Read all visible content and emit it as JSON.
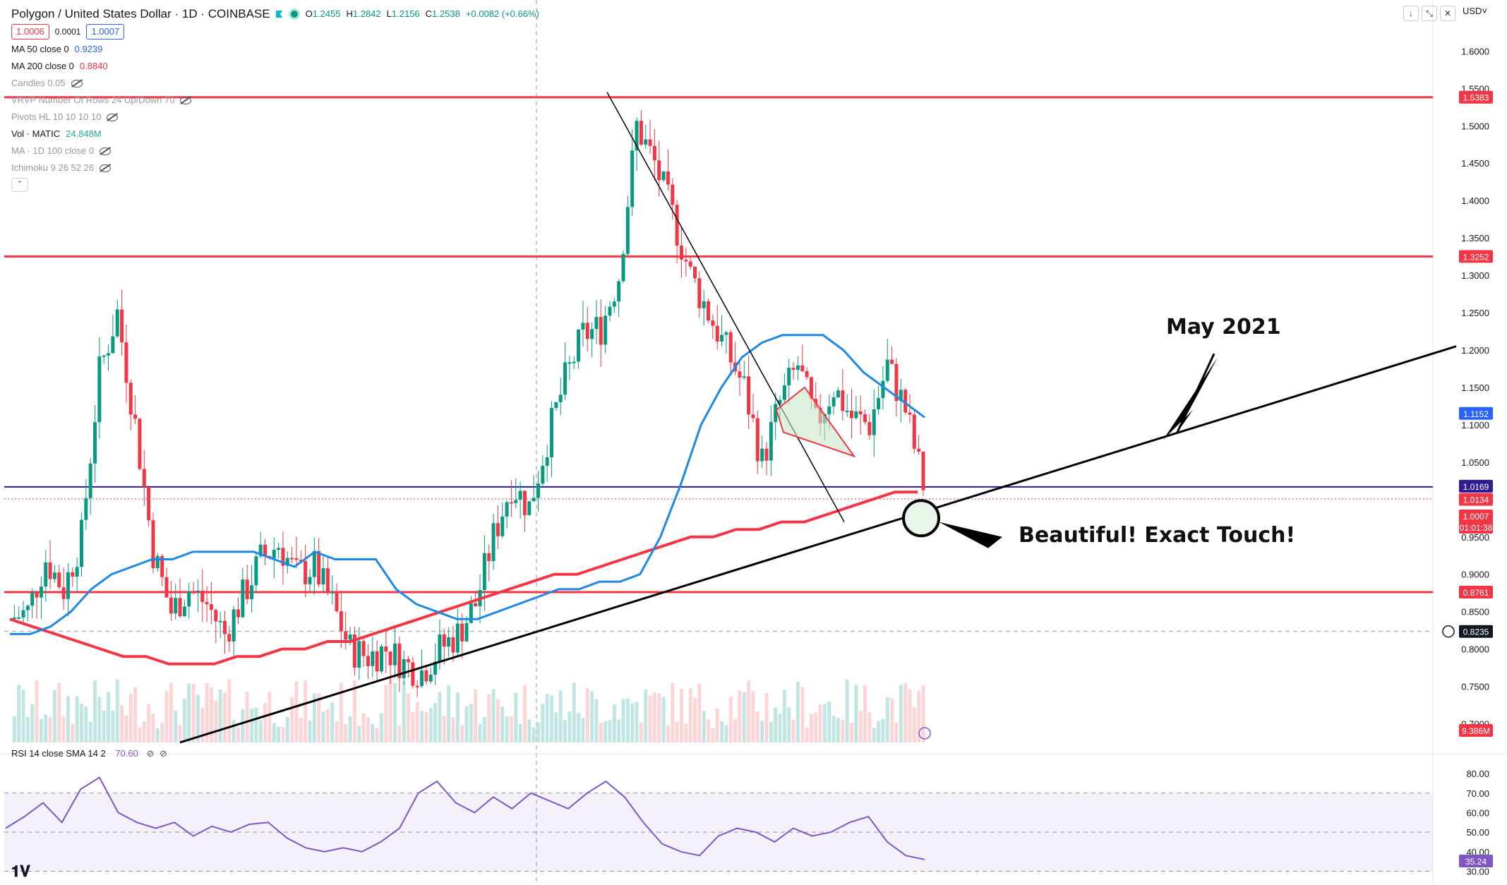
{
  "header": {
    "symbol": "Polygon / United States Dollar · 1D · COINBASE",
    "ohlc": {
      "o_label": "O",
      "o": "1.2455",
      "h_label": "H",
      "h": "1.2842",
      "l_label": "L",
      "l": "1.2156",
      "c_label": "C",
      "c": "1.2538",
      "change": "+0.0082 (+0.66%)"
    },
    "bid": "1.0006",
    "spread": "0.0001",
    "ask": "1.0007",
    "currency": "USD"
  },
  "indicators": [
    {
      "name": "MA 50 close 0",
      "value": "0.9239",
      "color": "#2962ff"
    },
    {
      "name": "MA 200 close 0",
      "value": "0.8840",
      "color": "#f23645"
    },
    {
      "name": "Candles 0.05",
      "value": "",
      "hidden": true
    },
    {
      "name": "VRVP Number Of Rows 24 Up/Down 70",
      "value": "",
      "hidden": true
    },
    {
      "name": "Pivots HL 10 10 10 10",
      "value": "",
      "hidden": true
    },
    {
      "name": "Vol · MATIC",
      "value": "24.848M",
      "color": "#22ab94"
    },
    {
      "name": "MA · 1D 100 close 0",
      "value": "",
      "hidden": true
    },
    {
      "name": "Ichimoku 9 26 52 26",
      "value": "",
      "hidden": true
    }
  ],
  "rsi": {
    "label": "RSI 14 close SMA 14 2",
    "value": "70.60"
  },
  "annotations": {
    "may": "May 2021",
    "touch": "Beautiful! Exact Touch!"
  },
  "price_labels": [
    {
      "value": "1.5383",
      "color": "#f23645"
    },
    {
      "value": "1.3252",
      "color": "#f23645"
    },
    {
      "value": "1.1152",
      "color": "#2962ff"
    },
    {
      "value": "1.0169",
      "color": "#311b92"
    },
    {
      "value": "1.0134",
      "color": "#f23645"
    },
    {
      "value": "1.0007",
      "color": "#f23645"
    },
    {
      "value": "01:01:38",
      "color": "#f23645"
    },
    {
      "value": "0.8761",
      "color": "#f23645"
    },
    {
      "value": "0.8235",
      "color": "#131722"
    },
    {
      "value": "9.386M",
      "color": "#f23645"
    },
    {
      "value": "35.24",
      "color": "#7e57c2"
    }
  ],
  "chart_data": {
    "type": "line",
    "title": "",
    "y_ticks": [
      "1.6000",
      "1.5500",
      "1.5000",
      "1.4500",
      "1.4000",
      "1.3500",
      "1.3000",
      "1.2500",
      "1.2000",
      "1.1500",
      "1.1000",
      "1.0500",
      "0.9500",
      "0.9000",
      "0.8500",
      "0.8000",
      "0.7500",
      "0.7000"
    ],
    "ylim": [
      0.675,
      1.64
    ],
    "rsi_ticks": [
      "80.00",
      "70.00",
      "60.00",
      "50.00",
      "40.00",
      "30.00"
    ],
    "rsi_ylim": [
      28,
      84
    ],
    "horizontal_lines": [
      {
        "name": "resistance",
        "value": 1.5383,
        "color": "#f23645"
      },
      {
        "name": "resistance",
        "value": 1.3252,
        "color": "#f23645"
      },
      {
        "name": "level",
        "value": 1.0169,
        "color": "#311b92"
      },
      {
        "name": "support",
        "value": 0.8761,
        "color": "#f23645"
      }
    ],
    "series": [
      {
        "name": "MA 50",
        "color": "#1e88e5",
        "values": [
          0.82,
          0.82,
          0.83,
          0.85,
          0.88,
          0.9,
          0.91,
          0.92,
          0.92,
          0.93,
          0.93,
          0.93,
          0.93,
          0.92,
          0.91,
          0.93,
          0.92,
          0.92,
          0.92,
          0.88,
          0.86,
          0.85,
          0.84,
          0.84,
          0.85,
          0.86,
          0.87,
          0.88,
          0.88,
          0.89,
          0.89,
          0.9,
          0.95,
          1.02,
          1.1,
          1.15,
          1.19,
          1.21,
          1.22,
          1.22,
          1.22,
          1.2,
          1.17,
          1.15,
          1.13,
          1.11
        ]
      },
      {
        "name": "MA 200",
        "color": "#f23645",
        "values": [
          0.84,
          0.83,
          0.82,
          0.81,
          0.8,
          0.79,
          0.79,
          0.78,
          0.78,
          0.78,
          0.79,
          0.79,
          0.8,
          0.8,
          0.81,
          0.81,
          0.82,
          0.83,
          0.84,
          0.85,
          0.86,
          0.87,
          0.88,
          0.89,
          0.9,
          0.9,
          0.91,
          0.92,
          0.93,
          0.94,
          0.95,
          0.95,
          0.96,
          0.96,
          0.97,
          0.97,
          0.98,
          0.99,
          1.0,
          1.01,
          1.01
        ]
      },
      {
        "name": "Close",
        "color": "#22ab94",
        "values": [
          0.84,
          0.85,
          0.92,
          0.88,
          0.95,
          1.17,
          1.25,
          1.1,
          0.93,
          0.85,
          0.88,
          0.86,
          0.82,
          0.87,
          0.92,
          0.94,
          0.9,
          0.91,
          0.86,
          0.8,
          0.79,
          0.8,
          0.78,
          0.77,
          0.8,
          0.82,
          0.86,
          0.95,
          1.02,
          0.99,
          1.08,
          1.16,
          1.22,
          1.23,
          1.3,
          1.5,
          1.45,
          1.38,
          1.3,
          1.25,
          1.2,
          1.15,
          1.05,
          1.13,
          1.18,
          1.1,
          1.15,
          1.11,
          1.1,
          1.18,
          1.12,
          1.02
        ]
      },
      {
        "name": "RSI",
        "color": "#7e57c2",
        "values": [
          52,
          58,
          65,
          55,
          72,
          78,
          60,
          55,
          52,
          55,
          48,
          53,
          50,
          54,
          55,
          47,
          42,
          40,
          42,
          40,
          45,
          52,
          70,
          76,
          65,
          60,
          68,
          62,
          70,
          66,
          62,
          70,
          76,
          68,
          55,
          44,
          40,
          38,
          48,
          52,
          50,
          45,
          52,
          48,
          50,
          55,
          58,
          45,
          38,
          36
        ]
      }
    ]
  }
}
